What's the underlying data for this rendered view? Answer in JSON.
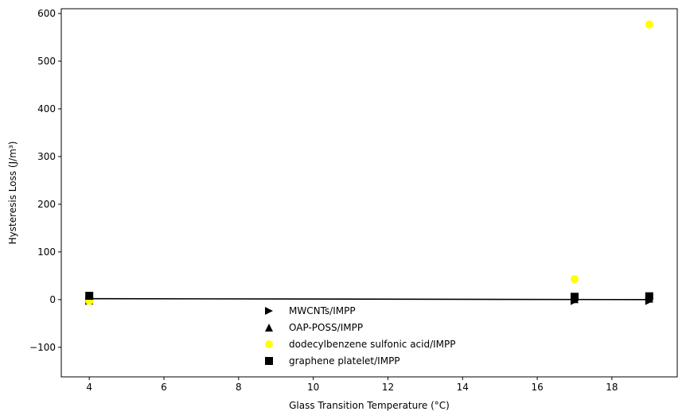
{
  "chart_data": {
    "type": "scatter",
    "title": "",
    "xlabel": "Glass Transition Temperature (°C)",
    "ylabel": "Hysteresis Loss (J/m³)",
    "xlim": [
      3.25,
      19.75
    ],
    "ylim": [
      -162,
      610
    ],
    "xticks": [
      4,
      6,
      8,
      10,
      12,
      14,
      16,
      18
    ],
    "yticks": [
      -100,
      0,
      100,
      200,
      300,
      400,
      500,
      600
    ],
    "xtick_labels": [
      "4",
      "6",
      "8",
      "10",
      "12",
      "14",
      "16",
      "18"
    ],
    "ytick_labels": [
      "−100",
      "0",
      "100",
      "200",
      "300",
      "400",
      "500",
      "600"
    ],
    "grid": false,
    "legend_position": "lower-center",
    "series": [
      {
        "name": "MWCNTs/IMPP",
        "marker": "triangle-right",
        "color": "#000000",
        "x": [
          4,
          17,
          19
        ],
        "y": [
          -3,
          -3,
          -3
        ]
      },
      {
        "name": "OAP-POSS/IMPP",
        "marker": "triangle-up",
        "color": "#000000",
        "x": [
          4,
          17,
          19
        ],
        "y": [
          -2,
          1,
          2
        ]
      },
      {
        "name": "dodecylbenzene sulfonic acid/IMPP",
        "marker": "circle",
        "color": "#ffff00",
        "x": [
          4,
          17,
          19
        ],
        "y": [
          -3,
          43,
          577
        ]
      },
      {
        "name": "graphene platelet/IMPP",
        "marker": "square",
        "color": "#000000",
        "x": [
          4,
          17,
          19
        ],
        "y": [
          8,
          6,
          7
        ]
      }
    ],
    "trend_line": {
      "color": "#000000",
      "x": [
        4,
        19
      ],
      "y": [
        2,
        0
      ]
    }
  }
}
